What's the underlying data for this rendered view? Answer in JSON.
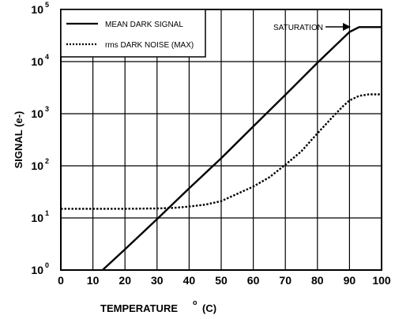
{
  "chart_data": {
    "type": "line",
    "xlabel": "TEMPERATURE",
    "xlabel_sup": "o",
    "xlabel_unit": "(C)",
    "ylabel": "SIGNAL  (e-)",
    "xlim": [
      0,
      100
    ],
    "ylim": [
      1,
      100000
    ],
    "y_scale": "log",
    "x_ticks": [
      "0",
      "10",
      "20",
      "30",
      "40",
      "50",
      "60",
      "70",
      "80",
      "90",
      "100"
    ],
    "y_ticks": [
      {
        "base": "10",
        "exp": "0"
      },
      {
        "base": "10",
        "exp": "1"
      },
      {
        "base": "10",
        "exp": "2"
      },
      {
        "base": "10",
        "exp": "3"
      },
      {
        "base": "10",
        "exp": "4"
      },
      {
        "base": "10",
        "exp": "5"
      }
    ],
    "grid": true,
    "legend_position": "top-left",
    "series": [
      {
        "name": "MEAN DARK SIGNAL",
        "style": "solid",
        "x": [
          13,
          20,
          30,
          40,
          50,
          60,
          70,
          80,
          90,
          93,
          100
        ],
        "y": [
          1,
          2.5,
          9.5,
          37,
          140,
          570,
          2300,
          9500,
          37000,
          46000,
          46000
        ]
      },
      {
        "name": "rms DARK NOISE (MAX)",
        "style": "dotted",
        "x": [
          0,
          10,
          20,
          30,
          35,
          40,
          45,
          50,
          55,
          60,
          65,
          70,
          75,
          80,
          85,
          88,
          90,
          93,
          96,
          100
        ],
        "y": [
          15,
          15,
          15,
          15.2,
          15.6,
          16.5,
          18,
          21,
          29,
          40,
          60,
          105,
          190,
          420,
          900,
          1400,
          1800,
          2200,
          2350,
          2350
        ]
      }
    ],
    "annotations": [
      {
        "text": "SATURATION",
        "arrow": "right"
      }
    ]
  }
}
